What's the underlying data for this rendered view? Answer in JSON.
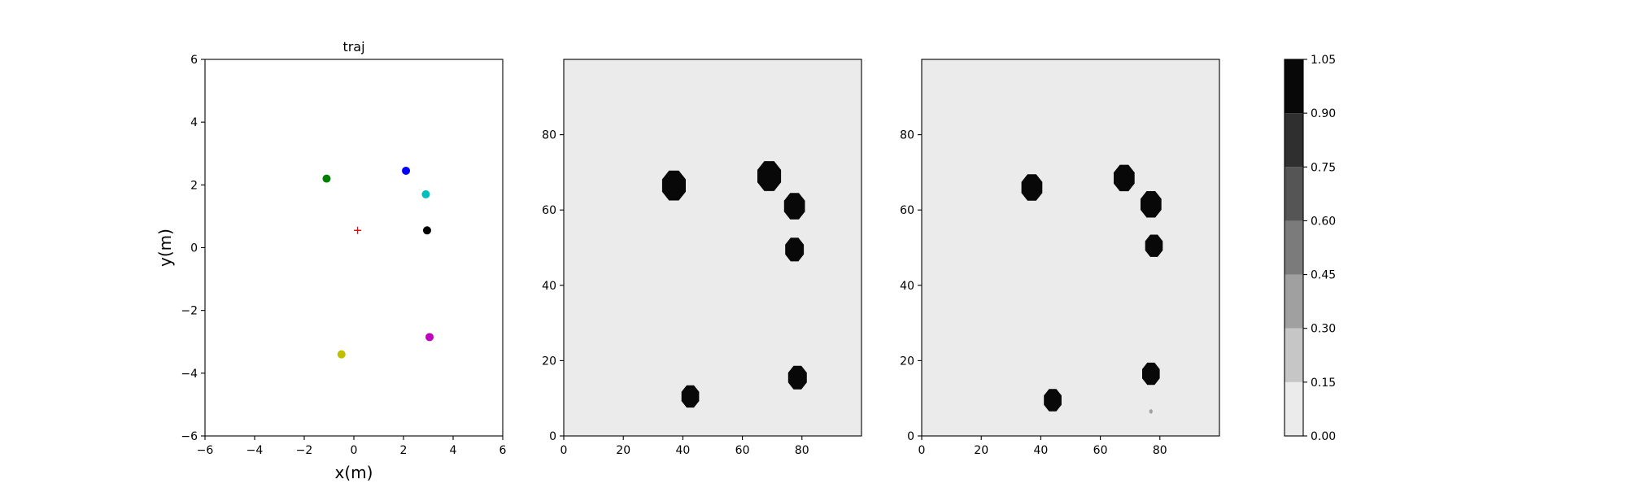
{
  "chart_data": [
    {
      "type": "scatter",
      "title": "traj",
      "xlabel": "x(m)",
      "ylabel": "y(m)",
      "xlim": [
        -6,
        6
      ],
      "ylim": [
        -6,
        6
      ],
      "xticks": [
        "−6",
        "−4",
        "−2",
        "0",
        "2",
        "4",
        "6"
      ],
      "yticks": [
        "−6",
        "−4",
        "−2",
        "0",
        "2",
        "4",
        "6"
      ],
      "grid": false,
      "points": [
        {
          "x": -1.1,
          "y": 2.2,
          "color": "#008000",
          "marker": "circle"
        },
        {
          "x": 2.1,
          "y": 2.45,
          "color": "#0000ff",
          "marker": "circle"
        },
        {
          "x": 2.9,
          "y": 1.7,
          "color": "#00bfbf",
          "marker": "circle"
        },
        {
          "x": 2.95,
          "y": 0.55,
          "color": "#000000",
          "marker": "circle"
        },
        {
          "x": 3.05,
          "y": -2.85,
          "color": "#bf00bf",
          "marker": "circle"
        },
        {
          "x": -0.5,
          "y": -3.4,
          "color": "#bfbf00",
          "marker": "circle"
        },
        {
          "x": 0.15,
          "y": 0.55,
          "color": "#ff0000",
          "marker": "plus"
        }
      ]
    },
    {
      "type": "heatmap",
      "xlim": [
        0,
        100
      ],
      "ylim": [
        0,
        100
      ],
      "xticks": [
        "0",
        "20",
        "40",
        "60",
        "80"
      ],
      "yticks": [
        "0",
        "20",
        "40",
        "60",
        "80"
      ],
      "background_value": 0.0,
      "blobs": [
        {
          "x": 37,
          "y": 66.5,
          "r": 4.3,
          "value": 1.0
        },
        {
          "x": 69,
          "y": 69,
          "r": 4.3,
          "value": 1.0
        },
        {
          "x": 77.5,
          "y": 61,
          "r": 3.8,
          "value": 1.0
        },
        {
          "x": 77.5,
          "y": 49.5,
          "r": 3.4,
          "value": 1.0
        },
        {
          "x": 78.5,
          "y": 15.5,
          "r": 3.4,
          "value": 1.0
        },
        {
          "x": 42.5,
          "y": 10.5,
          "r": 3.2,
          "value": 1.0
        }
      ]
    },
    {
      "type": "heatmap",
      "xlim": [
        0,
        100
      ],
      "ylim": [
        0,
        100
      ],
      "xticks": [
        "0",
        "20",
        "40",
        "60",
        "80"
      ],
      "yticks": [
        "0",
        "20",
        "40",
        "60",
        "80"
      ],
      "background_value": 0.0,
      "blobs": [
        {
          "x": 37,
          "y": 66,
          "r": 3.8,
          "value": 1.0
        },
        {
          "x": 68,
          "y": 68.5,
          "r": 3.8,
          "value": 1.0
        },
        {
          "x": 77,
          "y": 61.5,
          "r": 3.8,
          "value": 1.0
        },
        {
          "x": 78,
          "y": 50.5,
          "r": 3.2,
          "value": 1.0
        },
        {
          "x": 77,
          "y": 16.5,
          "r": 3.2,
          "value": 1.0
        },
        {
          "x": 44,
          "y": 9.5,
          "r": 3.2,
          "value": 1.0
        },
        {
          "x": 77,
          "y": 6.5,
          "r": 0.6,
          "value": 0.3
        }
      ]
    }
  ],
  "colorbar": {
    "levels": [
      0.0,
      0.15,
      0.3,
      0.45,
      0.6,
      0.75,
      0.9,
      1.05
    ],
    "labels": [
      "0.00",
      "0.15",
      "0.30",
      "0.45",
      "0.60",
      "0.75",
      "0.90",
      "1.05"
    ],
    "colors": [
      "#ebebeb",
      "#c6c6c6",
      "#a0a0a0",
      "#7b7b7b",
      "#555555",
      "#2f2f2f",
      "#080808"
    ]
  }
}
